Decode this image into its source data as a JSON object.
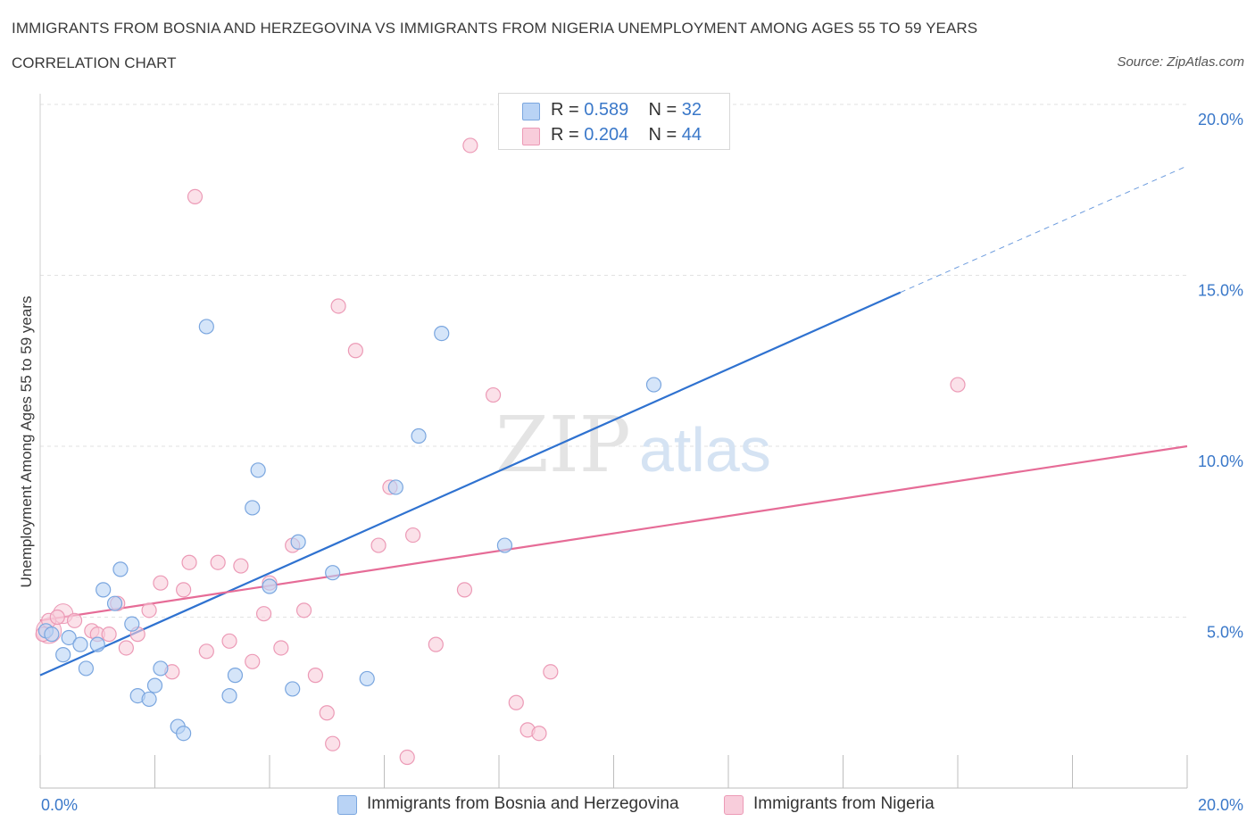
{
  "header": {
    "title": "IMMIGRANTS FROM BOSNIA AND HERZEGOVINA VS IMMIGRANTS FROM NIGERIA UNEMPLOYMENT AMONG AGES 55 TO 59 YEARS",
    "subtitle": "CORRELATION CHART",
    "source": "Source: ZipAtlas.com"
  },
  "legend_stats": [
    {
      "r_label": "R =",
      "r_value": "0.589",
      "n_label": "N =",
      "n_value": "32"
    },
    {
      "r_label": "R =",
      "r_value": "0.204",
      "n_label": "N =",
      "n_value": "44"
    }
  ],
  "watermark": {
    "zip": "ZIP",
    "atlas": "atlas"
  },
  "chart_data": {
    "type": "scatter",
    "title": "IMMIGRANTS FROM BOSNIA AND HERZEGOVINA VS IMMIGRANTS FROM NIGERIA UNEMPLOYMENT AMONG AGES 55 TO 59 YEARS",
    "subtitle": "CORRELATION CHART",
    "xlabel": "",
    "ylabel": "Unemployment Among Ages 55 to 59 years",
    "xlim": [
      0,
      20
    ],
    "ylim": [
      0,
      20
    ],
    "x_tick_labels": [
      "0.0%",
      "20.0%"
    ],
    "y_ticks": [
      5,
      10,
      15,
      20
    ],
    "y_tick_labels": [
      "5.0%",
      "10.0%",
      "15.0%",
      "20.0%"
    ],
    "grid": true,
    "legend_position": "bottom",
    "colors": {
      "bosnia_fill": "#b9d3f5",
      "bosnia_stroke": "#7aa6df",
      "bosnia_line": "#2f72d0",
      "nigeria_fill": "#f8cddb",
      "nigeria_stroke": "#ec9ab6",
      "nigeria_line": "#e66c97",
      "tick_label": "#3a78c9"
    },
    "series": [
      {
        "name": "Immigrants from Bosnia and Herzegovina",
        "r": 0.589,
        "n": 32,
        "trend": {
          "x0": 0,
          "y0": 3.3,
          "x1": 15.0,
          "y1": 14.5,
          "dash_to_x": 20.0,
          "dash_to_y": 18.2
        },
        "points": [
          {
            "x": 0.1,
            "y": 4.6
          },
          {
            "x": 0.2,
            "y": 4.5
          },
          {
            "x": 0.4,
            "y": 3.9
          },
          {
            "x": 0.5,
            "y": 4.4
          },
          {
            "x": 0.7,
            "y": 4.2
          },
          {
            "x": 0.8,
            "y": 3.5
          },
          {
            "x": 1.0,
            "y": 4.2
          },
          {
            "x": 1.1,
            "y": 5.8
          },
          {
            "x": 1.3,
            "y": 5.4
          },
          {
            "x": 1.4,
            "y": 6.4
          },
          {
            "x": 1.6,
            "y": 4.8
          },
          {
            "x": 1.7,
            "y": 2.7
          },
          {
            "x": 1.9,
            "y": 2.6
          },
          {
            "x": 2.0,
            "y": 3.0
          },
          {
            "x": 2.1,
            "y": 3.5
          },
          {
            "x": 2.4,
            "y": 1.8
          },
          {
            "x": 2.5,
            "y": 1.6
          },
          {
            "x": 2.9,
            "y": 13.5
          },
          {
            "x": 3.3,
            "y": 2.7
          },
          {
            "x": 3.4,
            "y": 3.3
          },
          {
            "x": 3.7,
            "y": 8.2
          },
          {
            "x": 3.8,
            "y": 9.3
          },
          {
            "x": 4.0,
            "y": 5.9
          },
          {
            "x": 4.4,
            "y": 2.9
          },
          {
            "x": 4.5,
            "y": 7.2
          },
          {
            "x": 5.1,
            "y": 6.3
          },
          {
            "x": 5.7,
            "y": 3.2
          },
          {
            "x": 6.2,
            "y": 8.8
          },
          {
            "x": 6.6,
            "y": 10.3
          },
          {
            "x": 7.0,
            "y": 13.3
          },
          {
            "x": 8.1,
            "y": 7.1
          },
          {
            "x": 10.7,
            "y": 11.8
          }
        ]
      },
      {
        "name": "Immigrants from Nigeria",
        "r": 0.204,
        "n": 44,
        "trend": {
          "x0": 0,
          "y0": 4.9,
          "x1": 20.0,
          "y1": 10.0
        },
        "points": [
          {
            "x": 0.05,
            "y": 4.5
          },
          {
            "x": 0.15,
            "y": 4.9
          },
          {
            "x": 0.3,
            "y": 5.0
          },
          {
            "x": 0.6,
            "y": 4.9
          },
          {
            "x": 0.9,
            "y": 4.6
          },
          {
            "x": 1.0,
            "y": 4.5
          },
          {
            "x": 1.2,
            "y": 4.5
          },
          {
            "x": 1.35,
            "y": 5.4
          },
          {
            "x": 1.5,
            "y": 4.1
          },
          {
            "x": 1.7,
            "y": 4.5
          },
          {
            "x": 1.9,
            "y": 5.2
          },
          {
            "x": 2.1,
            "y": 6.0
          },
          {
            "x": 2.3,
            "y": 3.4
          },
          {
            "x": 2.5,
            "y": 5.8
          },
          {
            "x": 2.6,
            "y": 6.6
          },
          {
            "x": 2.7,
            "y": 17.3
          },
          {
            "x": 2.9,
            "y": 4.0
          },
          {
            "x": 3.1,
            "y": 6.6
          },
          {
            "x": 3.3,
            "y": 4.3
          },
          {
            "x": 3.5,
            "y": 6.5
          },
          {
            "x": 3.7,
            "y": 3.7
          },
          {
            "x": 3.9,
            "y": 5.1
          },
          {
            "x": 4.0,
            "y": 6.0
          },
          {
            "x": 4.2,
            "y": 4.1
          },
          {
            "x": 4.4,
            "y": 7.1
          },
          {
            "x": 4.6,
            "y": 5.2
          },
          {
            "x": 4.8,
            "y": 3.3
          },
          {
            "x": 5.0,
            "y": 2.2
          },
          {
            "x": 5.1,
            "y": 1.3
          },
          {
            "x": 5.2,
            "y": 14.1
          },
          {
            "x": 5.5,
            "y": 12.8
          },
          {
            "x": 5.9,
            "y": 7.1
          },
          {
            "x": 6.1,
            "y": 8.8
          },
          {
            "x": 6.4,
            "y": 0.9
          },
          {
            "x": 6.5,
            "y": 7.4
          },
          {
            "x": 6.9,
            "y": 4.2
          },
          {
            "x": 7.4,
            "y": 5.8
          },
          {
            "x": 7.5,
            "y": 18.8
          },
          {
            "x": 7.9,
            "y": 11.5
          },
          {
            "x": 8.3,
            "y": 2.5
          },
          {
            "x": 8.5,
            "y": 1.7
          },
          {
            "x": 8.7,
            "y": 1.6
          },
          {
            "x": 8.9,
            "y": 3.4
          },
          {
            "x": 16.0,
            "y": 11.8
          }
        ]
      }
    ]
  }
}
